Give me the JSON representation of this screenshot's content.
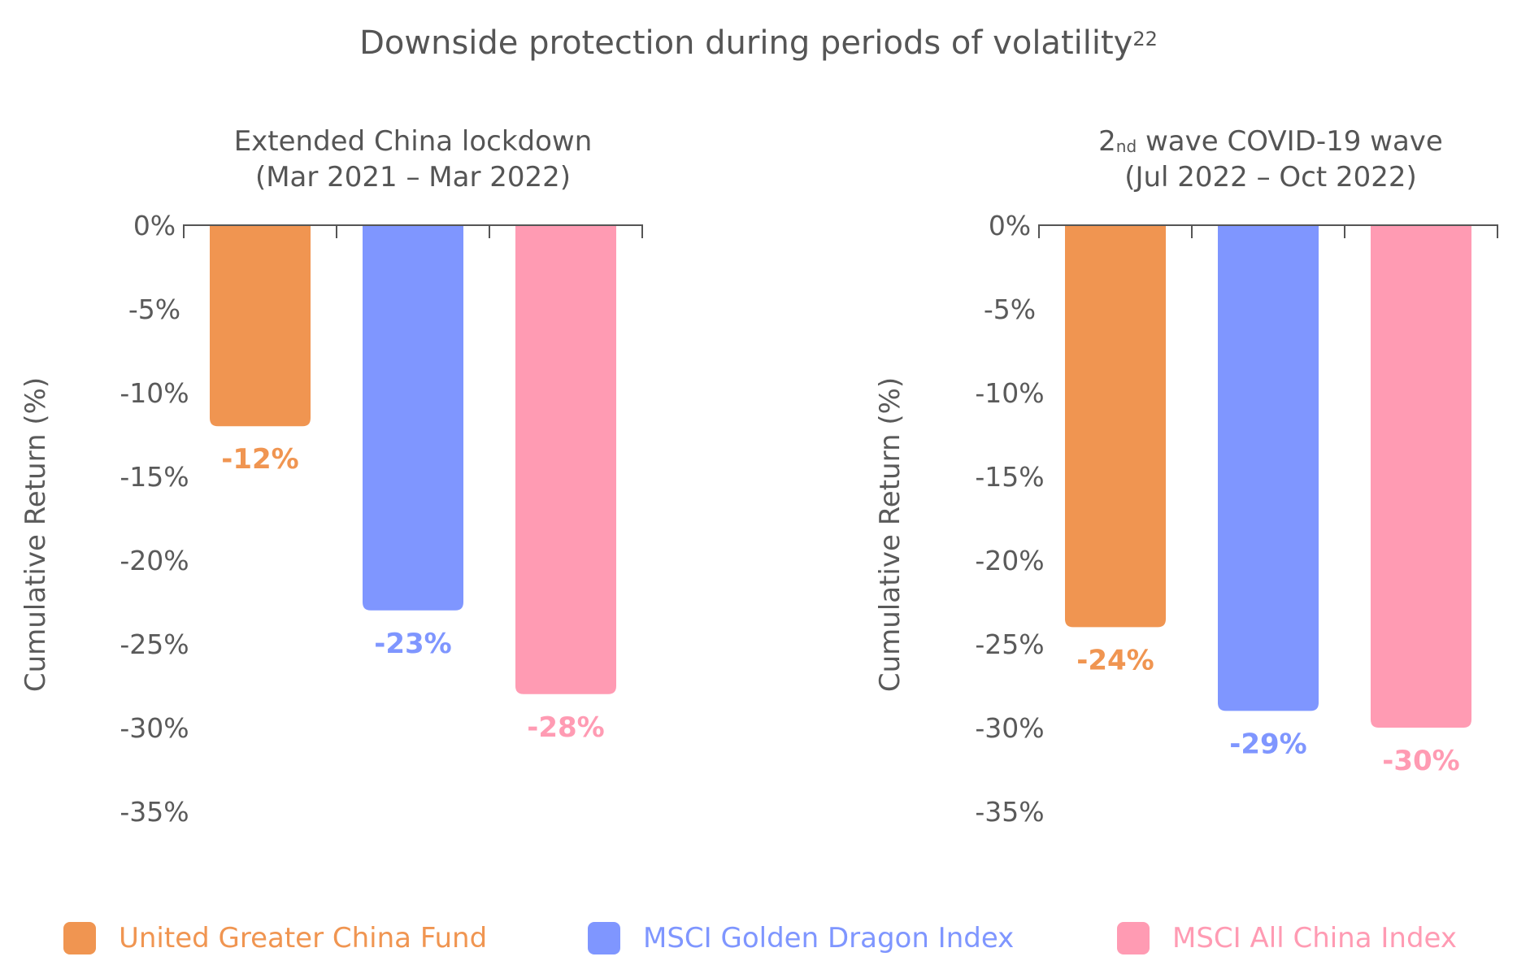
{
  "title": "Downside protection during periods of volatility",
  "title_superscript": "22",
  "colors": {
    "fund": "#f09551",
    "golden_dragon": "#7f96ff",
    "all_china": "#ff9bb3",
    "axis": "#555555",
    "text": "#5a5a5a"
  },
  "legend": [
    {
      "label": "United Greater China Fund",
      "color": "#f09551"
    },
    {
      "label": "MSCI Golden Dragon Index",
      "color": "#7f96ff"
    },
    {
      "label": "MSCI All China Index",
      "color": "#ff9bb3"
    }
  ],
  "chart_data": [
    {
      "type": "bar",
      "title_line1": "Extended China lockdown",
      "title_line2": "(Mar 2021 – Mar 2022)",
      "ylabel": "Cumulative Return (%)",
      "ylim": [
        -35,
        0
      ],
      "yticks": [
        0,
        -5,
        -10,
        -15,
        -20,
        -25,
        -30,
        -35
      ],
      "ytick_labels": [
        "0%",
        "-5%",
        "-10%",
        "-15%",
        "-20%",
        "-25%",
        "-30%",
        "-35%"
      ],
      "series": [
        {
          "name": "United Greater China Fund",
          "value": -12,
          "label": "-12%"
        },
        {
          "name": "MSCI Golden Dragon Index",
          "value": -23,
          "label": "-23%"
        },
        {
          "name": "MSCI All China Index",
          "value": -28,
          "label": "-28%"
        }
      ]
    },
    {
      "type": "bar",
      "title_ordinal": "2",
      "title_ordinal_suffix": "nd",
      "title_line1_rest": " wave COVID-19 wave",
      "title_line2": "(Jul 2022 – Oct 2022)",
      "ylabel": "Cumulative Return (%)",
      "ylim": [
        -35,
        0
      ],
      "yticks": [
        0,
        -5,
        -10,
        -15,
        -20,
        -25,
        -30,
        -35
      ],
      "ytick_labels": [
        "0%",
        "-5%",
        "-10%",
        "-15%",
        "-20%",
        "-25%",
        "-30%",
        "-35%"
      ],
      "series": [
        {
          "name": "United Greater China Fund",
          "value": -24,
          "label": "-24%"
        },
        {
          "name": "MSCI Golden Dragon Index",
          "value": -29,
          "label": "-29%"
        },
        {
          "name": "MSCI All China Index",
          "value": -30,
          "label": "-30%"
        }
      ]
    }
  ]
}
